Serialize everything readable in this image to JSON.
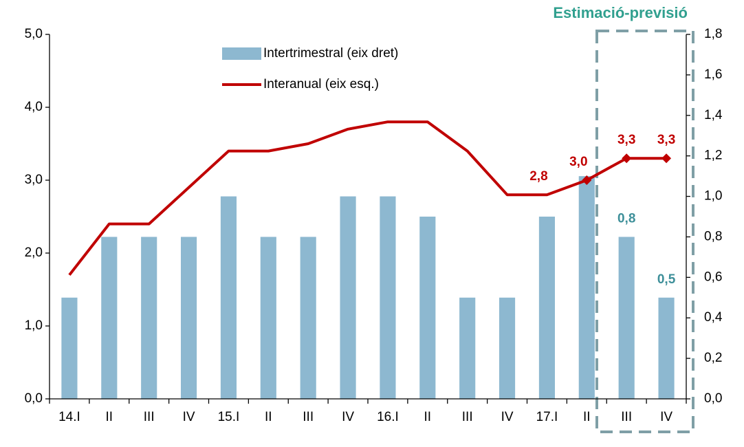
{
  "chart_data": {
    "type": "bar",
    "annotation": "Estimació-previsió",
    "categories": [
      "14.I",
      "II",
      "III",
      "IV",
      "15.I",
      "II",
      "III",
      "IV",
      "16.I",
      "II",
      "III",
      "IV",
      "17.I",
      "II",
      "III",
      "IV"
    ],
    "series": [
      {
        "name": "Intertrimestral (eix dret)",
        "type": "bar",
        "axis": "y2",
        "color": "#8db8d0",
        "label_color": "#3d8f99",
        "values": [
          0.5,
          0.8,
          0.8,
          0.8,
          1.0,
          0.8,
          0.8,
          1.0,
          1.0,
          0.9,
          0.5,
          0.5,
          0.9,
          1.1,
          0.8,
          0.5
        ],
        "value_labels": [
          null,
          null,
          null,
          null,
          null,
          null,
          null,
          null,
          null,
          null,
          null,
          null,
          null,
          null,
          "0,8",
          "0,5"
        ]
      },
      {
        "name": "Interanual (eix esq.)",
        "type": "line",
        "axis": "y",
        "color": "#c00000",
        "label_color": "#c00000",
        "values": [
          1.7,
          2.4,
          2.4,
          2.9,
          3.4,
          3.4,
          3.5,
          3.7,
          3.8,
          3.8,
          3.4,
          2.8,
          2.8,
          3.0,
          3.3,
          3.3
        ],
        "value_labels": [
          null,
          null,
          null,
          null,
          null,
          null,
          null,
          null,
          null,
          null,
          null,
          null,
          "2,8",
          "3,0",
          "3,3",
          "3,3"
        ]
      }
    ],
    "ylim": [
      0,
      5
    ],
    "yticks": [
      {
        "value": 0,
        "label": "0,0"
      },
      {
        "value": 1,
        "label": "1,0"
      },
      {
        "value": 2,
        "label": "2,0"
      },
      {
        "value": 3,
        "label": "3,0"
      },
      {
        "value": 4,
        "label": "4,0"
      },
      {
        "value": 5,
        "label": "5,0"
      }
    ],
    "y2lim": [
      0,
      1.8
    ],
    "y2ticks": [
      {
        "value": 0,
        "label": "0,0"
      },
      {
        "value": 0.2,
        "label": "0,2"
      },
      {
        "value": 0.4,
        "label": "0,4"
      },
      {
        "value": 0.6,
        "label": "0,6"
      },
      {
        "value": 0.8,
        "label": "0,8"
      },
      {
        "value": 1.0,
        "label": "1,0"
      },
      {
        "value": 1.2,
        "label": "1,2"
      },
      {
        "value": 1.4,
        "label": "1,4"
      },
      {
        "value": 1.6,
        "label": "1,6"
      },
      {
        "value": 1.8,
        "label": "1,8"
      }
    ],
    "grid": false
  }
}
